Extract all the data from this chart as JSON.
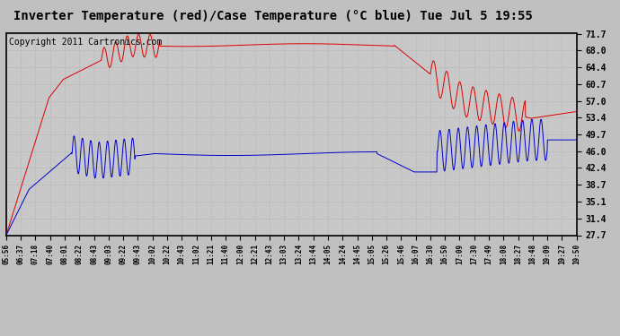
{
  "title": "Inverter Temperature (red)/Case Temperature (°C blue) Tue Jul 5 19:55",
  "copyright": "Copyright 2011 Cartronics.com",
  "yticks": [
    27.7,
    31.4,
    35.1,
    38.7,
    42.4,
    46.0,
    49.7,
    53.4,
    57.0,
    60.7,
    64.4,
    68.0,
    71.7
  ],
  "ymin": 27.7,
  "ymax": 71.7,
  "plot_bg_color": "#c8c8c8",
  "fig_bg_color": "#c0c0c0",
  "grid_color": "#aaaaaa",
  "red_color": "#dd0000",
  "blue_color": "#0000cc",
  "title_fontsize": 10,
  "copyright_fontsize": 7,
  "x_labels": [
    "05:56",
    "06:37",
    "07:18",
    "07:40",
    "08:01",
    "08:22",
    "08:43",
    "09:03",
    "09:22",
    "09:43",
    "10:02",
    "10:22",
    "10:43",
    "11:02",
    "11:21",
    "11:40",
    "12:00",
    "12:21",
    "12:43",
    "13:03",
    "13:24",
    "13:44",
    "14:05",
    "14:24",
    "14:45",
    "15:05",
    "15:26",
    "15:46",
    "16:07",
    "16:30",
    "16:50",
    "17:09",
    "17:30",
    "17:49",
    "18:08",
    "18:27",
    "18:48",
    "19:09",
    "19:27",
    "19:50"
  ]
}
